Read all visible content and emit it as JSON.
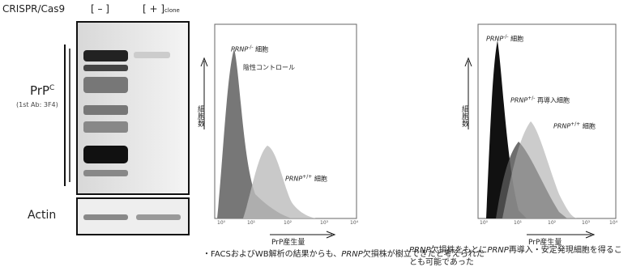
{
  "blot": {
    "label": "CRISPR/Cas9",
    "lanes": [
      "[ – ]",
      "[ + ]"
    ],
    "lane_sub": "clone",
    "antigen": "PrP",
    "antigen_sup": "C",
    "antibody": "(1st Ab: 3F4)",
    "loading": "Actin"
  },
  "facs_left": {
    "y_label": "細胞数",
    "x_label": "PrP産生量",
    "xticks": [
      "10⁰",
      "10¹",
      "10²",
      "10³",
      "10⁴"
    ],
    "labels": [
      {
        "gene": "PRNP",
        "genotype": "-/-",
        "suffix": " 細胞"
      },
      {
        "text": "陰性コントロール"
      },
      {
        "gene": "PRNP",
        "genotype": "+/+",
        "suffix": " 細胞"
      }
    ]
  },
  "facs_right": {
    "y_label": "細胞数",
    "x_label": "PrP産生量",
    "xticks": [
      "10⁰",
      "10¹",
      "10²",
      "10³",
      "10⁴"
    ],
    "labels": [
      {
        "gene": "PRNP",
        "genotype": "-/-",
        "suffix": " 細胞"
      },
      {
        "gene": "PRNP",
        "genotype": "+/-",
        "suffix": " 再導入細胞"
      },
      {
        "gene": "PRNP",
        "genotype": "+/+",
        "suffix": " 細胞"
      }
    ]
  },
  "captions": [
    [
      "・FACSおよびWB解析の結果からも、",
      "PRNP",
      "欠損株が樹立できたと考えられた"
    ],
    [
      "PRNP",
      "欠損株をもとに",
      "PRNP",
      "再導入・安定発現",
      "細胞を得ることも可能であった"
    ]
  ]
}
